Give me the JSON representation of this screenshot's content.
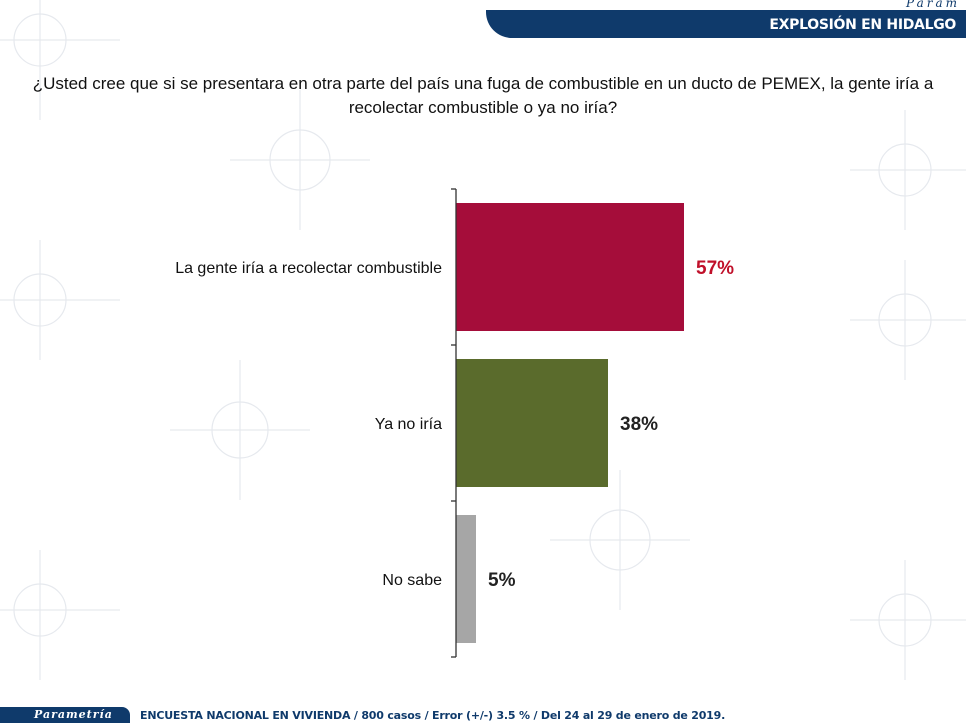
{
  "header": {
    "brand": "Param",
    "section_title": "EXPLOSIÓN EN HIDALGO"
  },
  "question": "¿Usted cree que si se presentara en otra parte del país una fuga de combustible en un ducto de PEMEX, la gente iría a recolectar combustible o ya no iría?",
  "footer": {
    "brand": "Parametría",
    "note": "ENCUESTA NACIONAL EN VIVIENDA / 800 casos / Error (+/-) 3.5 % / Del 24 al 29 de enero de 2019."
  },
  "colors": {
    "primary": "#0f3a6b",
    "bar_1": "#a50d3a",
    "bar_2": "#5a6b2c",
    "bar_3": "#a6a6a6",
    "label_1": "#c0102a",
    "label_2": "#222222",
    "label_3": "#222222"
  },
  "chart_data": {
    "type": "bar",
    "orientation": "horizontal",
    "categories": [
      "La gente iría a recolectar combustible",
      "Ya no iría",
      "No sabe"
    ],
    "values": [
      57,
      38,
      5
    ],
    "value_labels": [
      "57%",
      "38%",
      "5%"
    ],
    "title": "",
    "xlabel": "",
    "ylabel": "",
    "xlim": [
      0,
      100
    ],
    "grid": false,
    "legend": "none"
  }
}
